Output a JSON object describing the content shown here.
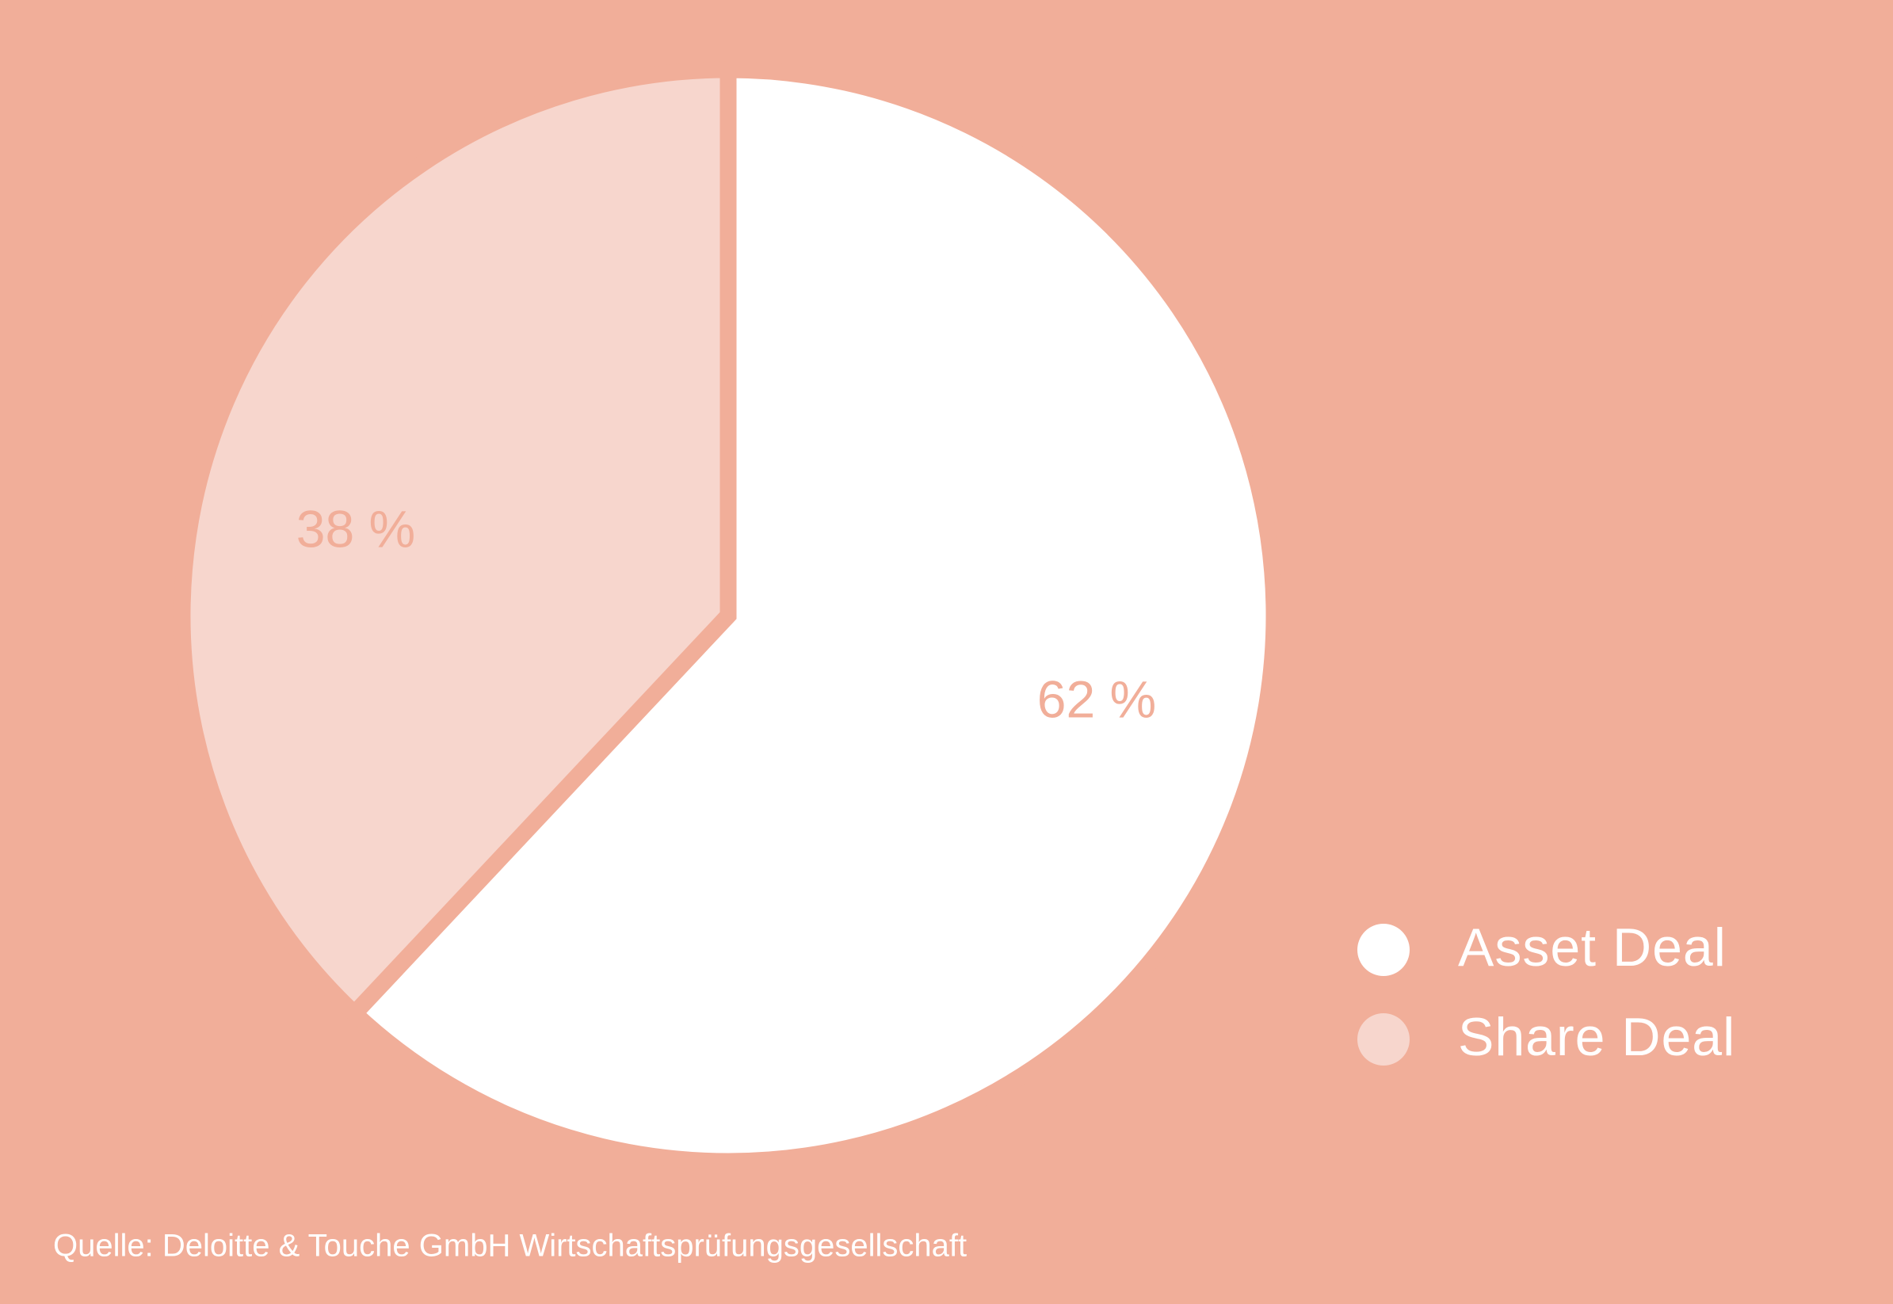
{
  "chart_data": {
    "type": "pie",
    "categories": [
      "Asset Deal",
      "Share Deal"
    ],
    "values": [
      62,
      38
    ],
    "value_labels": [
      "62 %",
      "38 %"
    ],
    "colors": [
      "#ffffff",
      "#f7d6cd"
    ],
    "source": "Quelle: Deloitte & Touche GmbH Wirtschaftsprüfungsgesellschaft"
  }
}
